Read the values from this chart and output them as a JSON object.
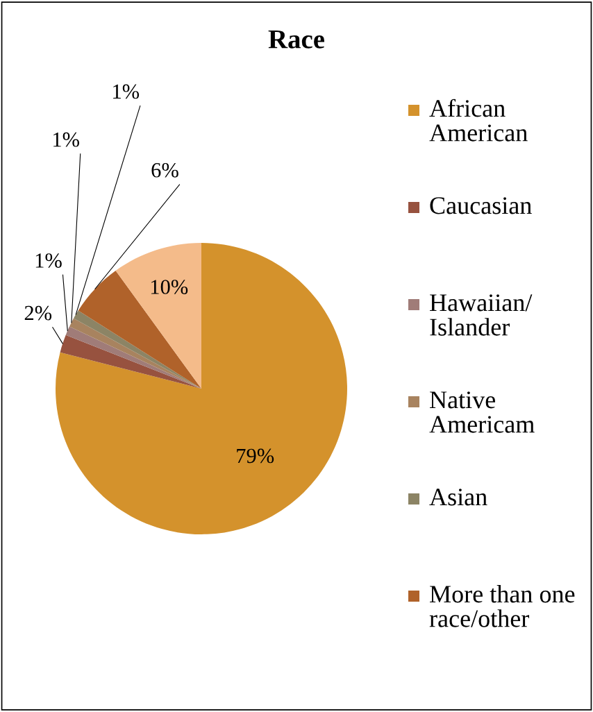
{
  "chart_data": {
    "type": "pie",
    "title": "Race",
    "categories": [
      "African American",
      "Caucasian",
      "Hawaiian/ Islander",
      "Native Americam",
      "Asian",
      "More than one race/other",
      null
    ],
    "values": [
      79,
      2,
      1,
      1,
      1,
      6,
      10
    ],
    "value_labels": [
      "79%",
      "2%",
      "1%",
      "1%",
      "1%",
      "6%",
      "10%"
    ],
    "colors": [
      "#d4922c",
      "#97523f",
      "#a07c78",
      "#a8835f",
      "#8c8465",
      "#b0622a",
      "#f4bb8a"
    ],
    "legend": "right"
  }
}
